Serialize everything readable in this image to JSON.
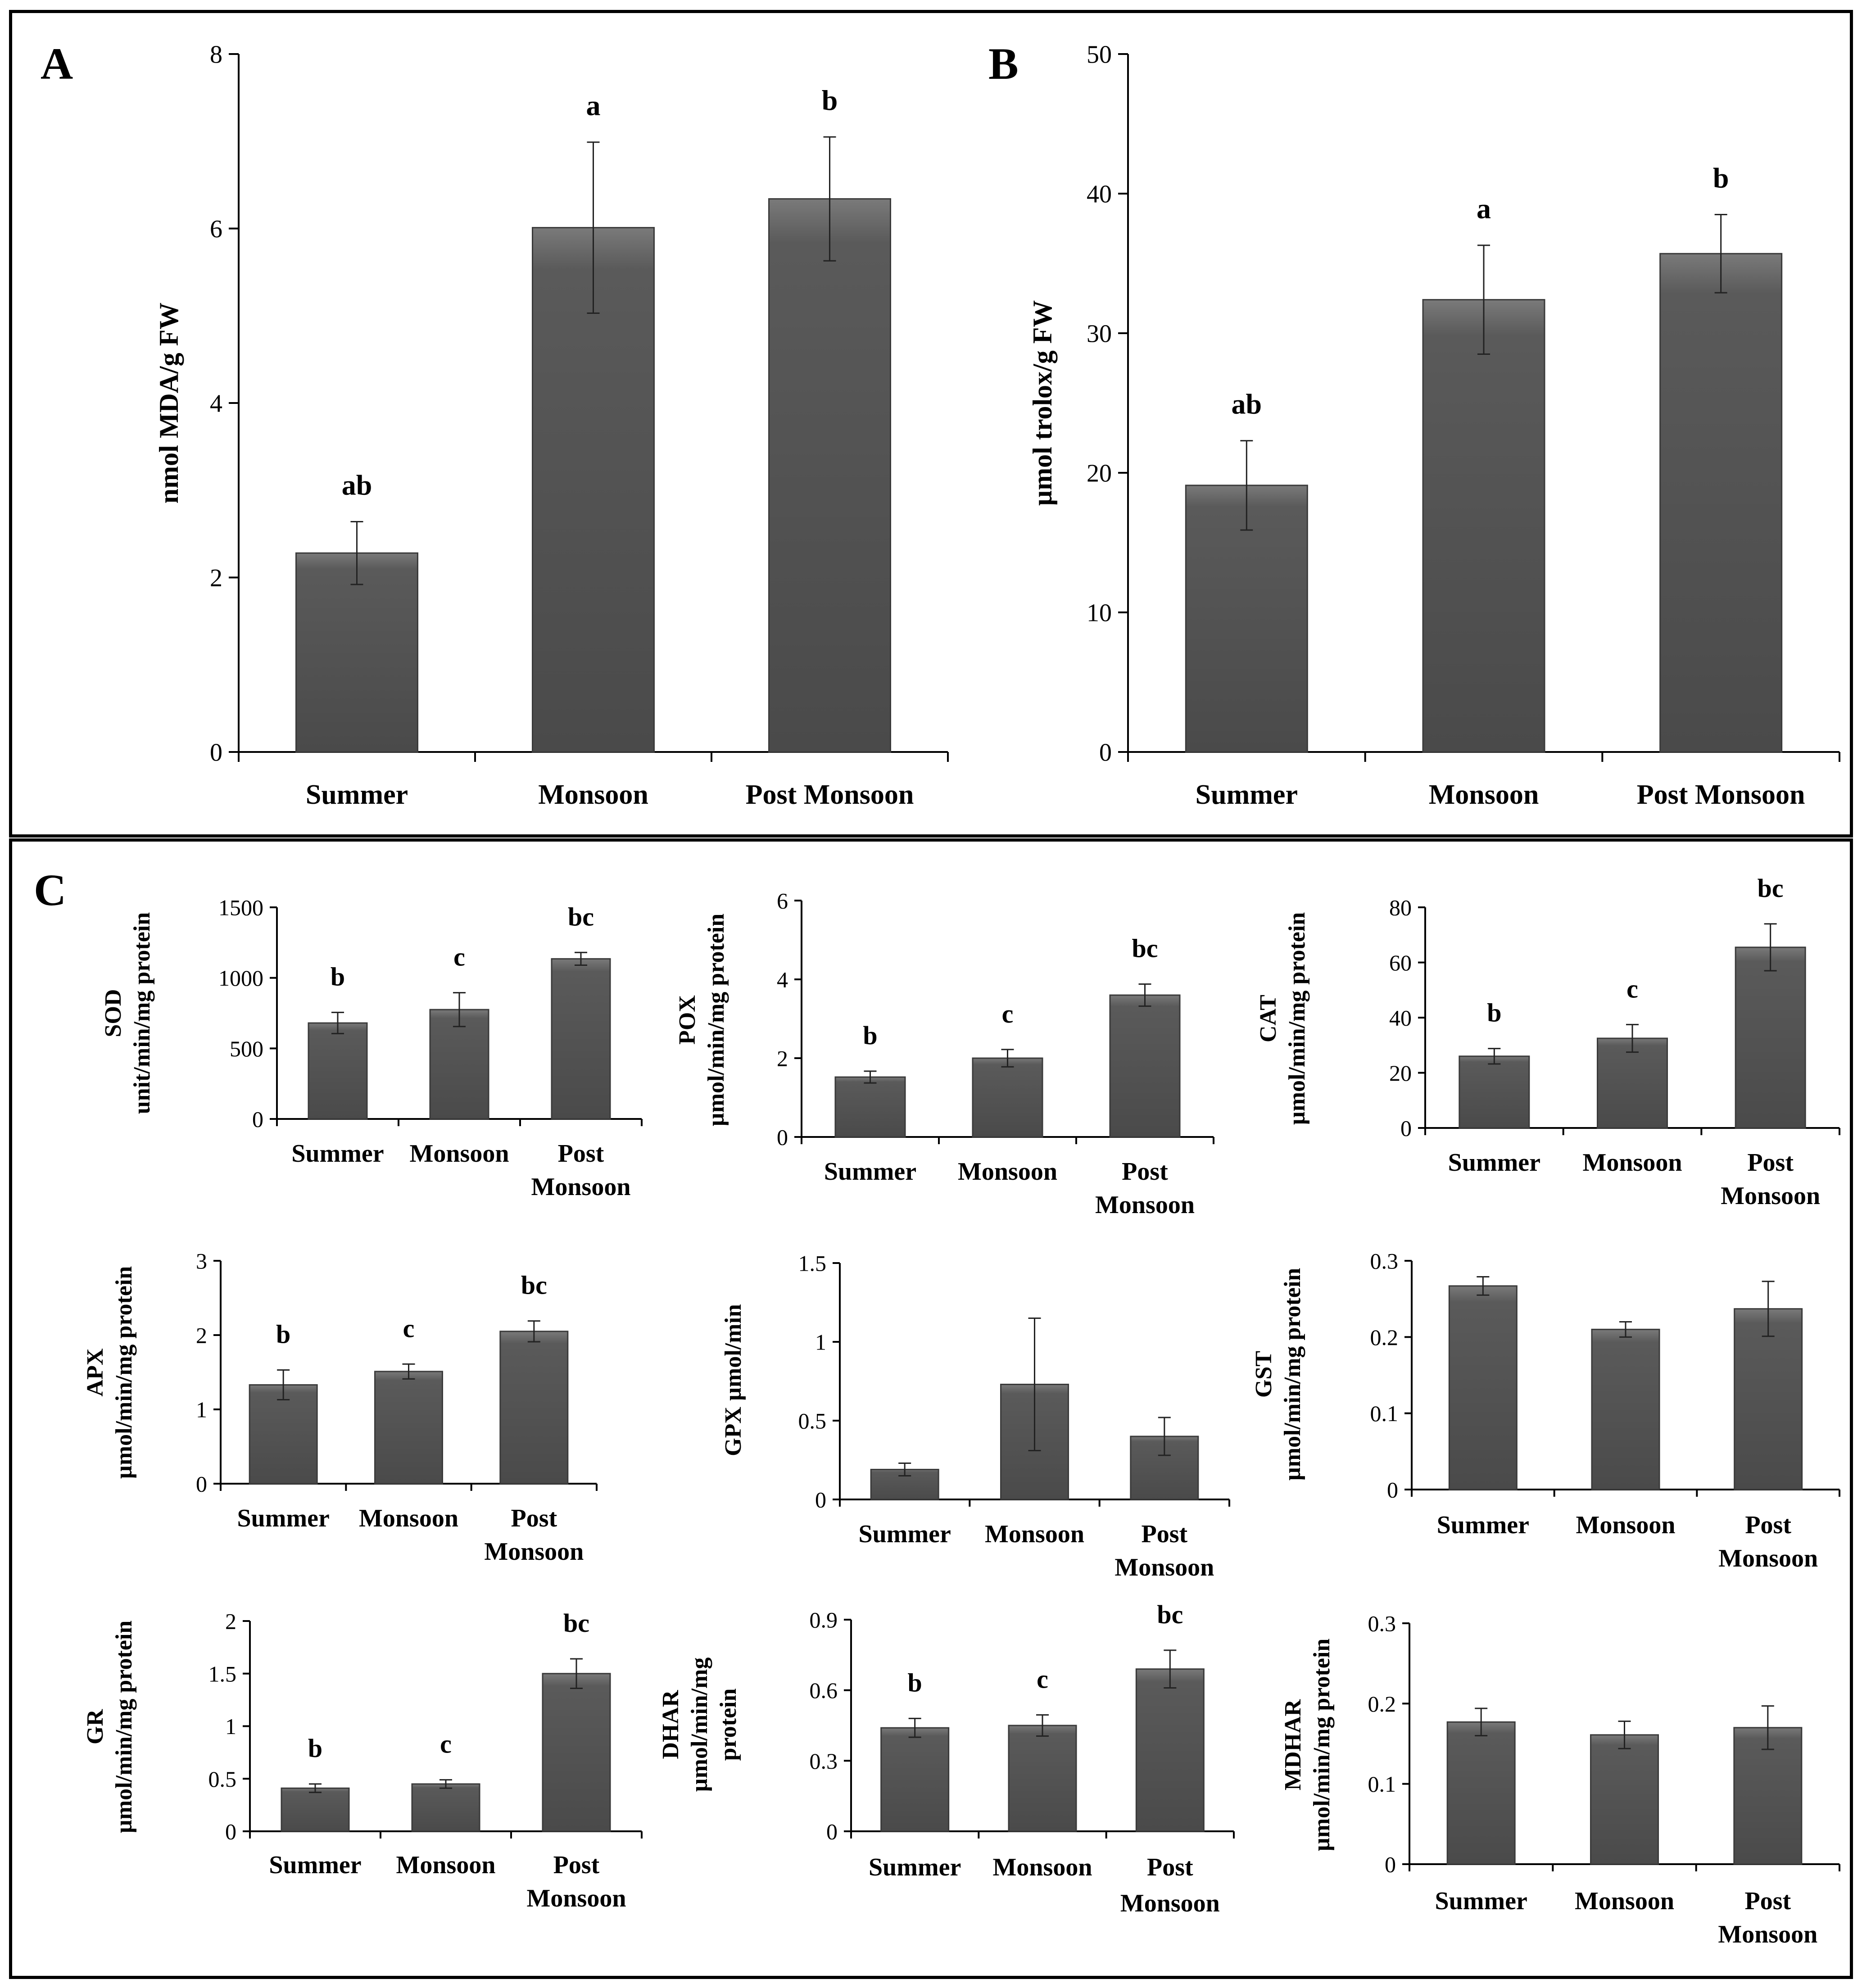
{
  "chart_data": [
    {
      "panel": "A",
      "type": "bar",
      "categories": [
        "Summer",
        "Monsoon",
        "Post Monsoon"
      ],
      "values": [
        2.28,
        6.01,
        6.34
      ],
      "errors": [
        0.36,
        0.98,
        0.71
      ],
      "letters": [
        "ab",
        "a",
        "b"
      ],
      "ylabel": [
        "nmol MDA/g FW"
      ],
      "ylim": [
        0,
        8
      ],
      "yticks": [
        "0",
        "2",
        "4",
        "6",
        "8"
      ]
    },
    {
      "panel": "B",
      "type": "bar",
      "categories": [
        "Summer",
        "Monsoon",
        "Post Monsoon"
      ],
      "values": [
        19.1,
        32.4,
        35.7
      ],
      "errors": [
        3.2,
        3.9,
        2.8
      ],
      "letters": [
        "ab",
        "a",
        "b"
      ],
      "ylabel": [
        "µmol trolox/g FW"
      ],
      "ylim": [
        0,
        50
      ],
      "yticks": [
        "0",
        "10",
        "20",
        "30",
        "40",
        "50"
      ]
    },
    {
      "panel": "C",
      "sub": "SOD",
      "type": "bar",
      "categories": [
        "Summer",
        "Monsoon",
        [
          "Post",
          "Monsoon"
        ]
      ],
      "values": [
        680,
        775,
        1135
      ],
      "errors": [
        75,
        120,
        45
      ],
      "letters": [
        "b",
        "c",
        "bc"
      ],
      "ylabel": [
        "SOD",
        "unit/min/mg protein"
      ],
      "ylim": [
        0,
        1500
      ],
      "yticks": [
        "0",
        "500",
        "1000",
        "1500"
      ]
    },
    {
      "panel": "C",
      "sub": "POX",
      "type": "bar",
      "categories": [
        "Summer",
        "Monsoon",
        [
          "Post",
          "Monsoon"
        ]
      ],
      "values": [
        1.52,
        2.0,
        3.6
      ],
      "errors": [
        0.15,
        0.22,
        0.28
      ],
      "letters": [
        "b",
        "c",
        "bc"
      ],
      "ylabel": [
        "POX",
        "µmol/min/mg protein"
      ],
      "ylim": [
        0,
        6
      ],
      "yticks": [
        "0",
        "2",
        "4",
        "6"
      ]
    },
    {
      "panel": "C",
      "sub": "CAT",
      "type": "bar",
      "categories": [
        "Summer",
        "Monsoon",
        [
          "Post",
          "Monsoon"
        ]
      ],
      "values": [
        26,
        32.5,
        65.5
      ],
      "errors": [
        2.8,
        5.0,
        8.5
      ],
      "letters": [
        "b",
        "c",
        "bc"
      ],
      "ylabel": [
        "CAT",
        "µmol/min/mg protein"
      ],
      "ylim": [
        0,
        80
      ],
      "yticks": [
        "0",
        "20",
        "40",
        "60",
        "80"
      ]
    },
    {
      "panel": "C",
      "sub": "APX",
      "type": "bar",
      "categories": [
        "Summer",
        "Monsoon",
        [
          "Post",
          "Monsoon"
        ]
      ],
      "values": [
        1.33,
        1.51,
        2.05
      ],
      "errors": [
        0.2,
        0.1,
        0.14
      ],
      "letters": [
        "b",
        "c",
        "bc"
      ],
      "ylabel": [
        "APX",
        "µmol/min/mg protein"
      ],
      "ylim": [
        0,
        3
      ],
      "yticks": [
        "0",
        "1",
        "2",
        "3"
      ]
    },
    {
      "panel": "C",
      "sub": "GPX",
      "type": "bar",
      "categories": [
        "Summer",
        "Monsoon",
        [
          "Post",
          "Monsoon"
        ]
      ],
      "values": [
        0.19,
        0.73,
        0.4
      ],
      "errors": [
        0.04,
        0.42,
        0.12
      ],
      "letters": [
        "",
        "",
        ""
      ],
      "ylabel": [
        "GPX µmol/min"
      ],
      "ylim": [
        0,
        1.5
      ],
      "yticks": [
        "0",
        "0.5",
        "1",
        "1.5"
      ]
    },
    {
      "panel": "C",
      "sub": "GST",
      "type": "bar",
      "categories": [
        "Summer",
        "Monsoon",
        [
          "Post",
          "Monsoon"
        ]
      ],
      "values": [
        0.267,
        0.21,
        0.237
      ],
      "errors": [
        0.012,
        0.01,
        0.036
      ],
      "letters": [
        "",
        "",
        ""
      ],
      "ylabel": [
        "GST",
        "µmol/min/mg protein"
      ],
      "ylim": [
        0,
        0.3
      ],
      "yticks": [
        "0",
        "0.1",
        "0.2",
        "0.3"
      ]
    },
    {
      "panel": "C",
      "sub": "GR",
      "type": "bar",
      "categories": [
        "Summer",
        "Monsoon",
        [
          "Post",
          "Monsoon"
        ]
      ],
      "values": [
        0.41,
        0.45,
        1.5
      ],
      "errors": [
        0.04,
        0.04,
        0.14
      ],
      "letters": [
        "b",
        "c",
        "bc"
      ],
      "ylabel": [
        "GR",
        "µmol/min/mg protein"
      ],
      "ylim": [
        0,
        2
      ],
      "yticks": [
        "0",
        "0.5",
        "1",
        "1.5",
        "2"
      ]
    },
    {
      "panel": "C",
      "sub": "DHAR",
      "type": "bar",
      "categories": [
        "Summer",
        "Monsoon",
        [
          "Post",
          "Monsoon"
        ]
      ],
      "values": [
        0.44,
        0.45,
        0.69
      ],
      "errors": [
        0.04,
        0.045,
        0.08
      ],
      "letters": [
        "b",
        "c",
        "bc"
      ],
      "ylabel": [
        "DHAR",
        "µmol/min/mg",
        "protein"
      ],
      "ylim": [
        0,
        0.9
      ],
      "yticks": [
        "0",
        "0.3",
        "0.6",
        "0.9"
      ]
    },
    {
      "panel": "C",
      "sub": "MDHAR",
      "type": "bar",
      "categories": [
        "Summer",
        "Monsoon",
        [
          "Post",
          "Monsoon"
        ]
      ],
      "values": [
        0.177,
        0.161,
        0.17
      ],
      "errors": [
        0.017,
        0.017,
        0.027
      ],
      "letters": [
        "",
        "",
        ""
      ],
      "ylabel": [
        "MDHAR",
        "µmol/min/mg protein"
      ],
      "ylim": [
        0,
        0.3
      ],
      "yticks": [
        "0",
        "0.1",
        "0.2",
        "0.3"
      ]
    }
  ],
  "panel_labels": [
    "A",
    "B",
    "C"
  ],
  "colors": {
    "bar_top": "#7a7a7a",
    "bar_mid": "#5a5a5a",
    "bar_bottom": "#4a4a4a",
    "axis": "#000000"
  }
}
